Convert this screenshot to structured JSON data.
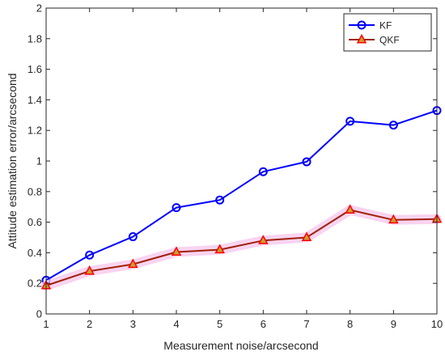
{
  "chart_data": {
    "type": "line",
    "xlabel": "Measurement noise/arcsecond",
    "ylabel": "Attitude estimation error/arcsecond",
    "xlim": [
      1,
      10
    ],
    "ylim": [
      0,
      2
    ],
    "xticks": [
      "1",
      "2",
      "3",
      "4",
      "5",
      "6",
      "7",
      "8",
      "9",
      "10"
    ],
    "yticks": [
      "0",
      "0.2",
      "0.4",
      "0.6",
      "0.8",
      "1",
      "1.2",
      "1.4",
      "1.6",
      "1.8",
      "2"
    ],
    "grid": false,
    "legend_position": "top-right",
    "x": [
      1,
      2,
      3,
      4,
      5,
      6,
      7,
      8,
      9,
      10
    ],
    "series": [
      {
        "name": "KF",
        "color": "#0000ff",
        "marker": "circle",
        "values": [
          0.22,
          0.385,
          0.505,
          0.695,
          0.745,
          0.93,
          0.995,
          1.26,
          1.235,
          1.33
        ]
      },
      {
        "name": "QKF",
        "color": "#a0200a",
        "marker_color": "#ff0000",
        "marker": "triangle",
        "values": [
          0.185,
          0.28,
          0.325,
          0.405,
          0.42,
          0.48,
          0.5,
          0.68,
          0.615,
          0.62
        ]
      }
    ]
  }
}
